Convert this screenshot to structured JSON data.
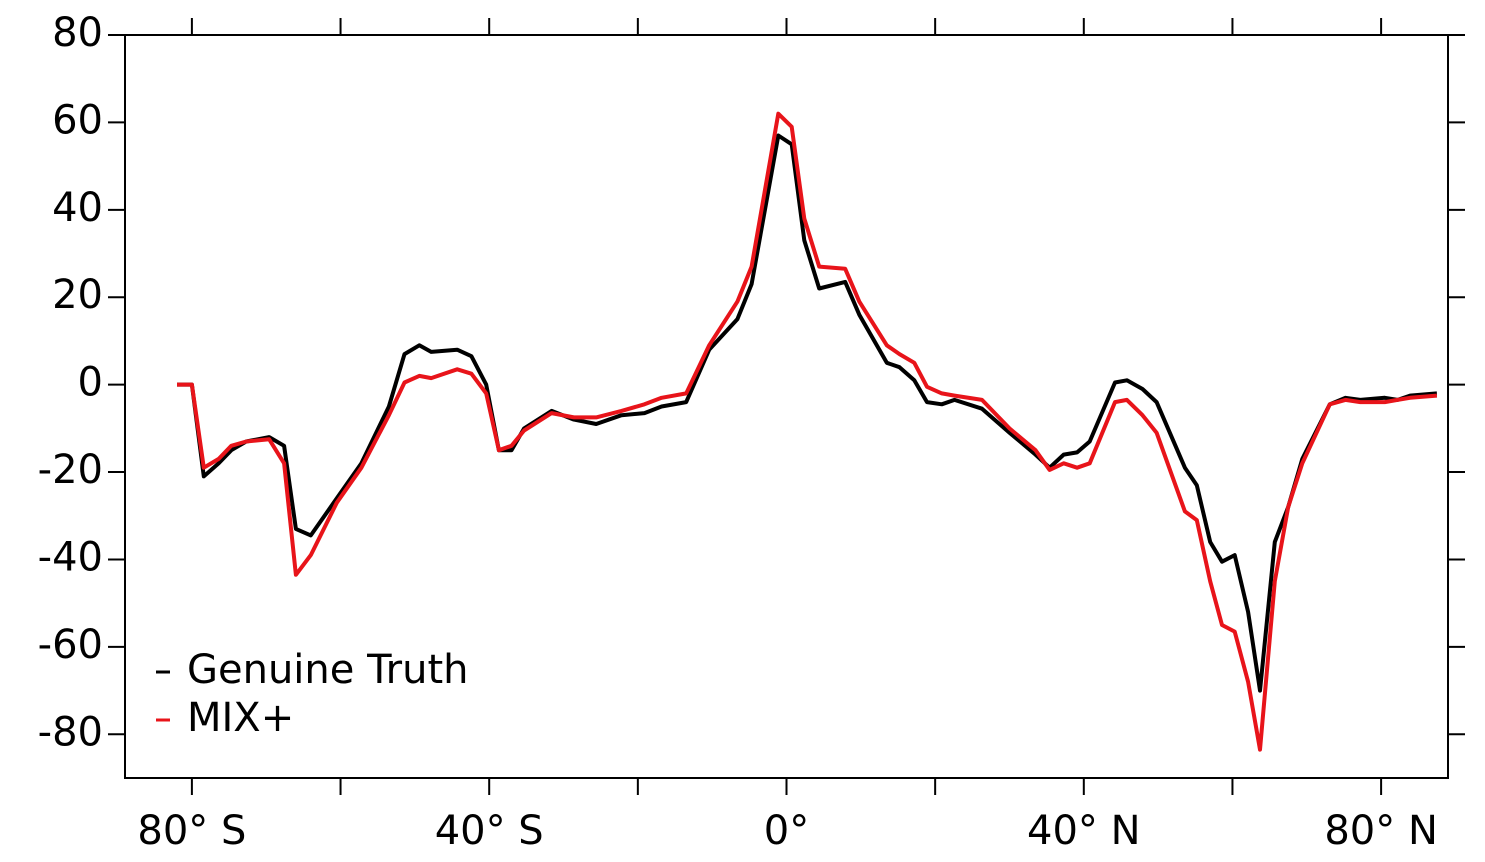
{
  "chart_data": {
    "type": "line",
    "xlim": [
      -89,
      89
    ],
    "ylim": [
      -90,
      80
    ],
    "yticks": [
      -80,
      -60,
      -40,
      -20,
      0,
      20,
      40,
      60,
      80
    ],
    "xticks": [
      {
        "value": -80,
        "label": "80° S"
      },
      {
        "value": -40,
        "label": "40° S"
      },
      {
        "value": 0,
        "label": "0°"
      },
      {
        "value": 40,
        "label": "40° N"
      },
      {
        "value": 80,
        "label": "80° N"
      }
    ],
    "xminorticks": [
      -60,
      -20,
      20,
      60
    ],
    "x": [
      -82,
      -80,
      -78.4,
      -76.4,
      -74.7,
      -72.7,
      -69.6,
      -67.6,
      -66,
      -64,
      -60.5,
      -57.2,
      -53.5,
      -51.4,
      -49.4,
      -47.8,
      -44.3,
      -42.4,
      -40.4,
      -38.7,
      -37,
      -35.3,
      -31.6,
      -28.6,
      -25.6,
      -22.2,
      -19.1,
      -16.8,
      -13.5,
      -10.4,
      -6.6,
      -4.7,
      -1.1,
      0.7,
      2.4,
      4.4,
      7.9,
      9.8,
      13.5,
      15.2,
      17.2,
      18.9,
      20.9,
      22.6,
      26.3,
      30,
      33.5,
      35.4,
      37.3,
      39.1,
      40.8,
      44.2,
      45.8,
      47.9,
      49.8,
      53.6,
      55.2,
      57,
      58.6,
      60.3,
      62.1,
      63.7,
      65.7,
      67.5,
      69.4,
      73.1,
      75.2,
      77.2,
      80.5,
      82.2,
      83.9,
      87.5
    ],
    "series": [
      {
        "name": "Genuine Truth",
        "color": "#000000",
        "values": [
          0,
          0,
          -21,
          -18,
          -15,
          -13,
          -12,
          -14,
          -33,
          -34.5,
          -26,
          -18,
          -5,
          7,
          9,
          7.5,
          8,
          6.5,
          0,
          -15,
          -15,
          -10,
          -6,
          -8,
          -9,
          -7,
          -6.5,
          -5,
          -4,
          8,
          15,
          23,
          57,
          55,
          33,
          22,
          23.5,
          16,
          5,
          4,
          1,
          -4,
          -4.5,
          -3.5,
          -5.5,
          -11,
          -16,
          -19,
          -16,
          -15.5,
          -13,
          0.5,
          1,
          -1,
          -4,
          -19,
          -23,
          -36,
          -40.5,
          -39,
          -52,
          -70,
          -36,
          -28,
          -17,
          -4.5,
          -3,
          -3.5,
          -3,
          -3.5,
          -2.5,
          -2
        ]
      },
      {
        "name": "MIX+",
        "color": "#e8141a",
        "values": [
          0,
          0,
          -19,
          -17,
          -14,
          -13,
          -12.5,
          -18,
          -43.5,
          -39,
          -27,
          -19,
          -7,
          0.5,
          2,
          1.5,
          3.5,
          2.5,
          -2,
          -15,
          -14,
          -10.5,
          -6.5,
          -7.5,
          -7.5,
          -6,
          -4.5,
          -3,
          -2,
          9,
          19,
          27,
          62,
          59,
          38,
          27,
          26.5,
          19,
          9,
          7,
          5,
          -0.5,
          -2,
          -2.5,
          -3.5,
          -10,
          -15,
          -19.5,
          -18,
          -19,
          -18,
          -4,
          -3.5,
          -7,
          -11,
          -29,
          -31,
          -45,
          -55,
          -56.5,
          -68,
          -83.5,
          -45,
          -28,
          -18,
          -4.5,
          -3.5,
          -4,
          -4,
          -3.5,
          -3,
          -2.5
        ]
      }
    ]
  }
}
